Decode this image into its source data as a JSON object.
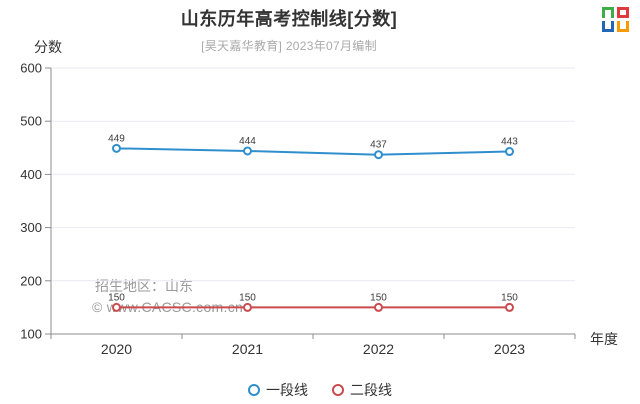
{
  "chart_data": {
    "type": "line",
    "title": "山东历年高考控制线[分数]",
    "subtitle": "[昊天嘉华教育] 2023年07月编制",
    "categories": [
      "2020",
      "2021",
      "2022",
      "2023"
    ],
    "series": [
      {
        "name": "一段线",
        "color": "#2f8fce",
        "values": [
          449,
          444,
          437,
          443
        ]
      },
      {
        "name": "二段线",
        "color": "#cb4a4e",
        "values": [
          150,
          150,
          150,
          150
        ]
      }
    ],
    "xlabel": "年度",
    "ylabel": "分数",
    "ylim": [
      100,
      600
    ],
    "y_ticks": [
      100,
      200,
      300,
      400,
      500,
      600
    ],
    "grid": true,
    "point_labels": true,
    "marker": "empty-circle",
    "legend_position": "bottom"
  },
  "annotations": {
    "region": "招生地区：山东",
    "watermark": "© www.CACSC.com.cn"
  },
  "style": {
    "axis_color": "#8c8c8c",
    "grid_color": "#e9e9f2",
    "title_color": "#333333",
    "subtitle_color": "#aaaaaa",
    "annotation_color": "#999999",
    "logo_colors": {
      "top_left": "#3fae49",
      "top_right": "#e0393e",
      "bottom_left": "#2565b5",
      "bottom_right": "#f79b00"
    }
  }
}
